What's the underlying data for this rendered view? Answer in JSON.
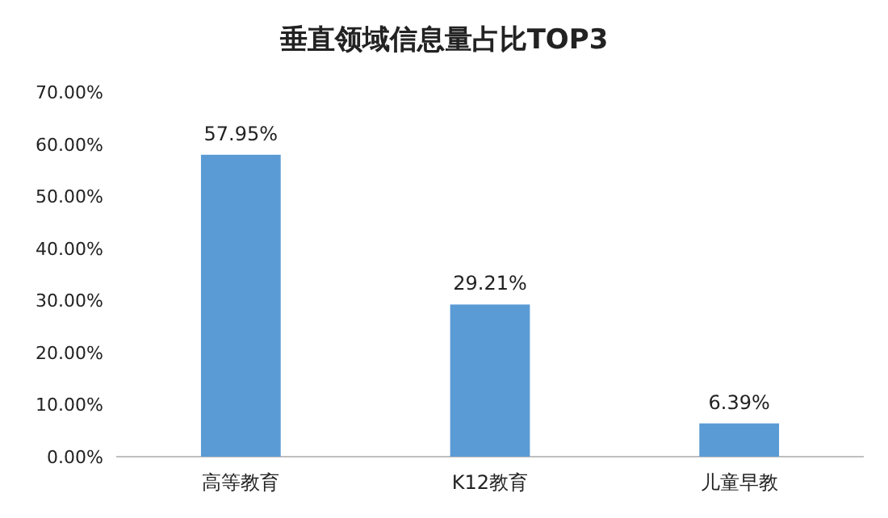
{
  "chart_data": {
    "type": "bar",
    "title": "垂直领域信息量占比TOP3",
    "categories": [
      "高等教育",
      "K12教育",
      "儿童早教"
    ],
    "values": [
      57.95,
      29.21,
      6.39
    ],
    "value_labels": [
      "57.95%",
      "29.21%",
      "6.39%"
    ],
    "color": "#5b9bd5",
    "ylim": [
      0,
      70
    ],
    "yticks": [
      {
        "value": 0,
        "label": "0.00%"
      },
      {
        "value": 10,
        "label": "10.00%"
      },
      {
        "value": 20,
        "label": "20.00%"
      },
      {
        "value": 30,
        "label": "30.00%"
      },
      {
        "value": 40,
        "label": "40.00%"
      },
      {
        "value": 50,
        "label": "50.00%"
      },
      {
        "value": 60,
        "label": "60.00%"
      },
      {
        "value": 70,
        "label": "70.00%"
      }
    ],
    "grid": false
  }
}
